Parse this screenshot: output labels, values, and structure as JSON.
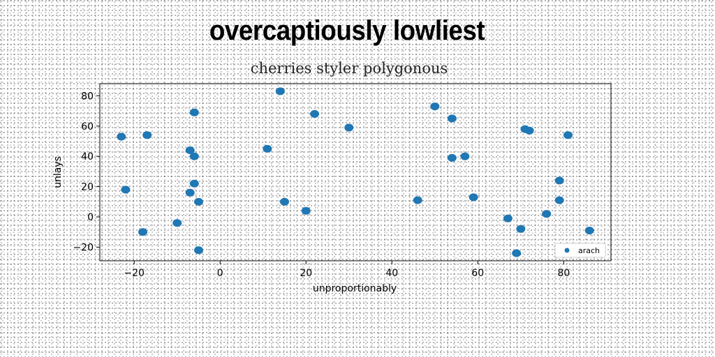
{
  "title": "overcaptiously lowliest",
  "chart_data": {
    "type": "scatter",
    "title": "cherries styler polygonous",
    "xlabel": "unproportionably",
    "ylabel": "unlays",
    "xlim": [
      -28,
      91
    ],
    "ylim": [
      -29,
      88
    ],
    "xticks": [
      -20,
      0,
      20,
      40,
      60,
      80
    ],
    "yticks": [
      -20,
      0,
      20,
      40,
      60,
      80
    ],
    "grid": false,
    "legend_position": "lower-right",
    "series": [
      {
        "name": "arach",
        "color": "#1f77b4",
        "x": [
          -23,
          -22,
          -18,
          -17,
          -10,
          -7,
          -7,
          -6,
          -6,
          -6,
          -5,
          -5,
          11,
          14,
          15,
          20,
          22,
          30,
          46,
          50,
          54,
          54,
          57,
          59,
          67,
          69,
          70,
          71,
          72,
          76,
          79,
          79,
          81,
          86
        ],
        "y": [
          53,
          18,
          -10,
          54,
          -4,
          44,
          16,
          69,
          40,
          22,
          10,
          -22,
          45,
          83,
          10,
          4,
          68,
          59,
          11,
          73,
          65,
          39,
          40,
          13,
          -1,
          -24,
          -8,
          58,
          57,
          2,
          24,
          11,
          54,
          -9
        ]
      }
    ]
  }
}
